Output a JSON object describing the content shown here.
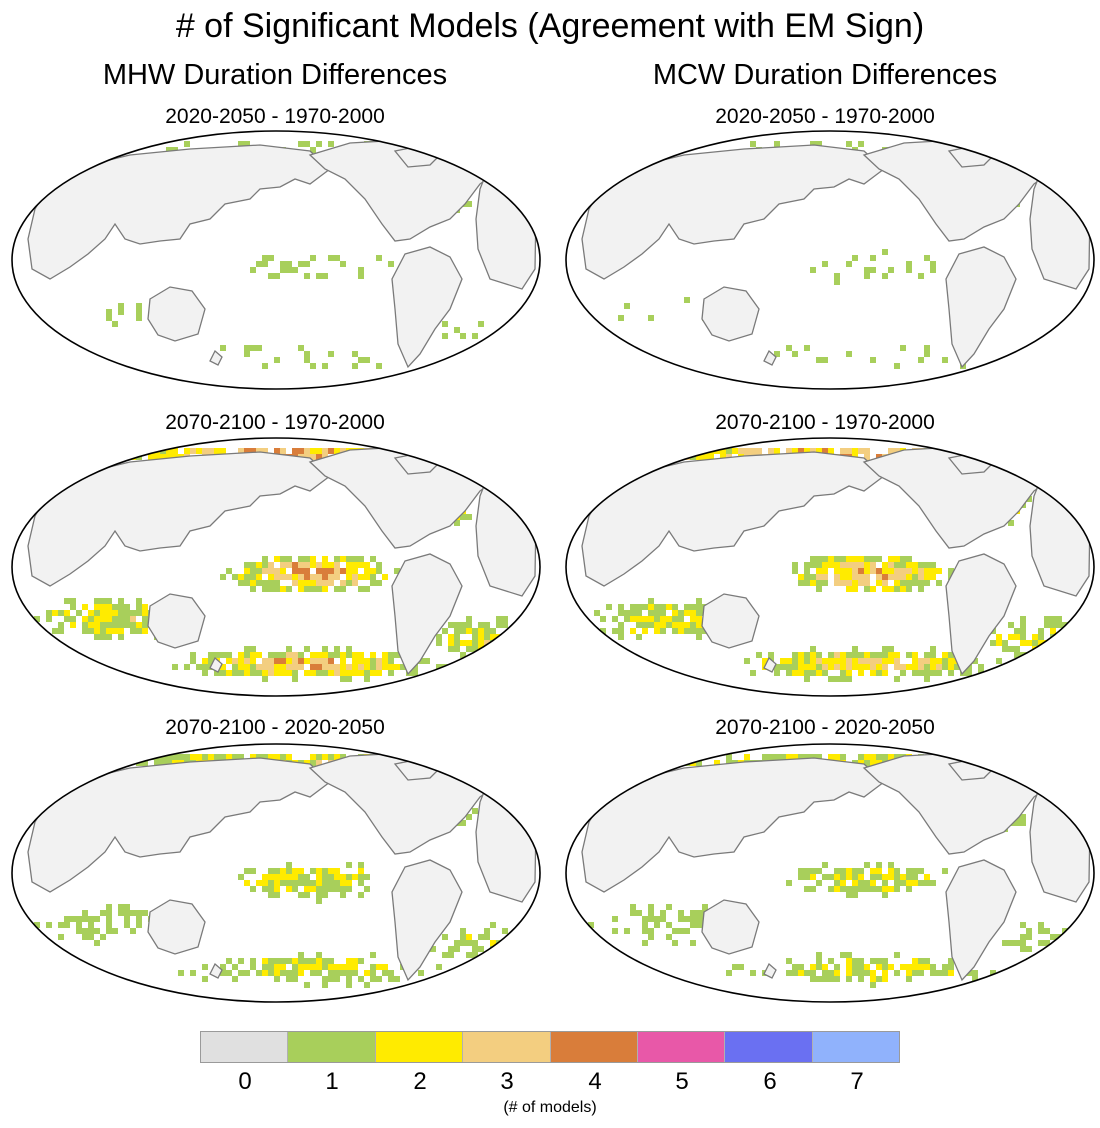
{
  "title": "# of Significant Models (Agreement with EM Sign)",
  "columns": [
    {
      "title": "MHW Duration Differences"
    },
    {
      "title": "MCW Duration Differences"
    }
  ],
  "panels": [
    {
      "title": "2020-2050 - 1970-2000",
      "intensity": 0.15
    },
    {
      "title": "2020-2050 - 1970-2000",
      "intensity": 0.12
    },
    {
      "title": "2070-2100 - 1970-2000",
      "intensity": 0.75
    },
    {
      "title": "2070-2100 - 1970-2000",
      "intensity": 0.7
    },
    {
      "title": "2070-2100 - 2020-2050",
      "intensity": 0.45
    },
    {
      "title": "2070-2100 - 2020-2050",
      "intensity": 0.4
    }
  ],
  "colorbar": {
    "labels": [
      "0",
      "1",
      "2",
      "3",
      "4",
      "5",
      "6",
      "7"
    ],
    "colors": [
      "#e0e0e0",
      "#a8cf5b",
      "#ffeb00",
      "#f3ce80",
      "#d97d3a",
      "#e858a8",
      "#6a70f2",
      "#90b2fc"
    ],
    "unit": "(# of models)"
  },
  "land_color": "#f2f2f2",
  "coast_color": "#7a7a7a"
}
